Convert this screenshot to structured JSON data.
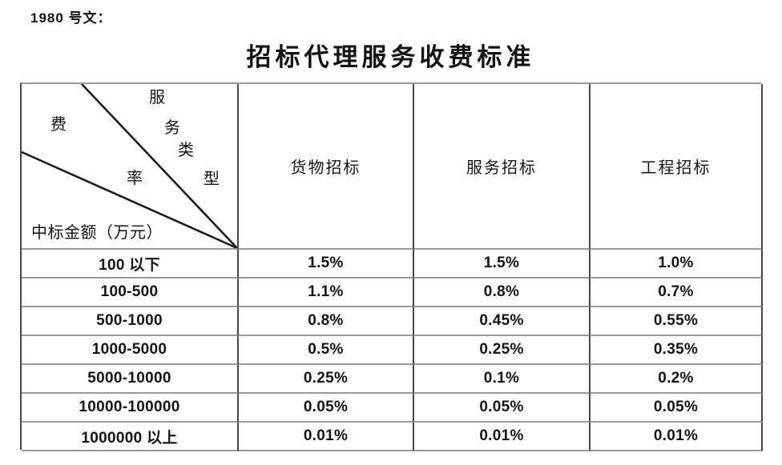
{
  "page": {
    "ref_label": "1980 号文：",
    "title": "招标代理服务收费标准"
  },
  "table": {
    "corner": {
      "diagonal_label_chars": [
        "服",
        "务",
        "类",
        "型"
      ],
      "rate_label_chars": [
        "费",
        "率"
      ],
      "amount_axis_label": "中标金额（万元）"
    },
    "column_headers": [
      "货物招标",
      "服务招标",
      "工程招标"
    ],
    "rows": [
      {
        "amount_range": "100 以下",
        "values": [
          "1.5%",
          "1.5%",
          "1.0%"
        ]
      },
      {
        "amount_range": "100-500",
        "values": [
          "1.1%",
          "0.8%",
          "0.7%"
        ]
      },
      {
        "amount_range": "500-1000",
        "values": [
          "0.8%",
          "0.45%",
          "0.55%"
        ]
      },
      {
        "amount_range": "1000-5000",
        "values": [
          "0.5%",
          "0.25%",
          "0.35%"
        ]
      },
      {
        "amount_range": "5000-10000",
        "values": [
          "0.25%",
          "0.1%",
          "0.2%"
        ]
      },
      {
        "amount_range": "10000-100000",
        "values": [
          "0.05%",
          "0.05%",
          "0.05%"
        ]
      },
      {
        "amount_range": "1000000 以上",
        "values": [
          "0.01%",
          "0.01%",
          "0.01%"
        ]
      }
    ]
  }
}
